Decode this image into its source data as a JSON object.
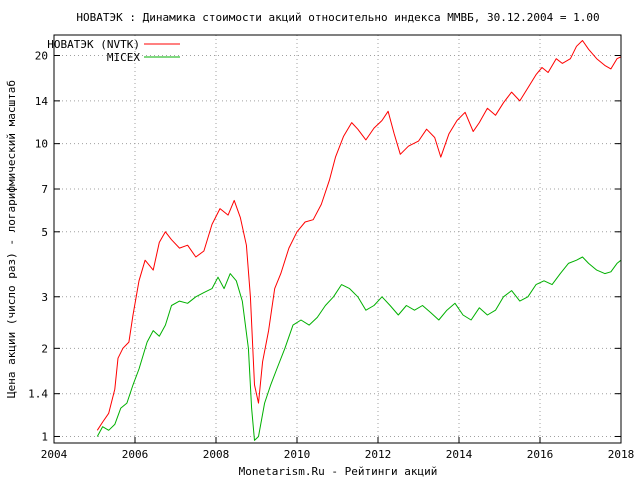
{
  "chart_data": {
    "type": "line",
    "title": "НОВАТЭК : Динамика стоимости акций относительно индекса ММВБ, 30.12.2004 = 1.00",
    "xlabel": "Monetarism.Ru - Рейтинги акций",
    "ylabel": "Цена акции (число раз) - логарифмический масштаб",
    "x_scale": "linear",
    "y_scale": "log",
    "xlim": [
      2004,
      2018
    ],
    "ylim": [
      0.95,
      23.5
    ],
    "x_ticks": [
      "2004",
      "2006",
      "2008",
      "2010",
      "2012",
      "2014",
      "2016",
      "2018"
    ],
    "y_ticks": [
      "1",
      "1.4",
      "2",
      "3",
      "5",
      "7",
      "10",
      "14",
      "20"
    ],
    "grid": true,
    "legend_position": "top-left",
    "series": [
      {
        "name": "НОВАТЭК (NVTK)",
        "color": "#ff0000",
        "points": [
          [
            2005.07,
            1.05
          ],
          [
            2005.2,
            1.12
          ],
          [
            2005.35,
            1.2
          ],
          [
            2005.5,
            1.45
          ],
          [
            2005.58,
            1.85
          ],
          [
            2005.7,
            2.0
          ],
          [
            2005.85,
            2.1
          ],
          [
            2005.95,
            2.6
          ],
          [
            2006.1,
            3.4
          ],
          [
            2006.25,
            4.0
          ],
          [
            2006.45,
            3.7
          ],
          [
            2006.6,
            4.6
          ],
          [
            2006.75,
            5.0
          ],
          [
            2006.9,
            4.7
          ],
          [
            2007.1,
            4.4
          ],
          [
            2007.3,
            4.5
          ],
          [
            2007.5,
            4.1
          ],
          [
            2007.7,
            4.3
          ],
          [
            2007.9,
            5.3
          ],
          [
            2008.1,
            6.0
          ],
          [
            2008.3,
            5.7
          ],
          [
            2008.45,
            6.4
          ],
          [
            2008.6,
            5.6
          ],
          [
            2008.75,
            4.5
          ],
          [
            2008.85,
            3.0
          ],
          [
            2008.95,
            1.5
          ],
          [
            2009.05,
            1.3
          ],
          [
            2009.15,
            1.8
          ],
          [
            2009.3,
            2.3
          ],
          [
            2009.45,
            3.2
          ],
          [
            2009.6,
            3.6
          ],
          [
            2009.8,
            4.4
          ],
          [
            2010.0,
            5.0
          ],
          [
            2010.2,
            5.4
          ],
          [
            2010.4,
            5.5
          ],
          [
            2010.6,
            6.2
          ],
          [
            2010.8,
            7.5
          ],
          [
            2010.95,
            9.0
          ],
          [
            2011.15,
            10.6
          ],
          [
            2011.35,
            11.8
          ],
          [
            2011.5,
            11.2
          ],
          [
            2011.7,
            10.3
          ],
          [
            2011.9,
            11.3
          ],
          [
            2012.1,
            12.0
          ],
          [
            2012.25,
            12.9
          ],
          [
            2012.4,
            10.8
          ],
          [
            2012.55,
            9.2
          ],
          [
            2012.75,
            9.8
          ],
          [
            2013.0,
            10.2
          ],
          [
            2013.2,
            11.2
          ],
          [
            2013.4,
            10.5
          ],
          [
            2013.55,
            9.0
          ],
          [
            2013.75,
            10.8
          ],
          [
            2013.95,
            12.0
          ],
          [
            2014.15,
            12.8
          ],
          [
            2014.35,
            11.0
          ],
          [
            2014.5,
            11.8
          ],
          [
            2014.7,
            13.2
          ],
          [
            2014.9,
            12.5
          ],
          [
            2015.1,
            13.8
          ],
          [
            2015.3,
            15.0
          ],
          [
            2015.5,
            14.0
          ],
          [
            2015.7,
            15.5
          ],
          [
            2015.9,
            17.2
          ],
          [
            2016.05,
            18.2
          ],
          [
            2016.2,
            17.5
          ],
          [
            2016.4,
            19.5
          ],
          [
            2016.55,
            18.8
          ],
          [
            2016.75,
            19.5
          ],
          [
            2016.9,
            21.5
          ],
          [
            2017.05,
            22.5
          ],
          [
            2017.2,
            21.0
          ],
          [
            2017.4,
            19.5
          ],
          [
            2017.6,
            18.5
          ],
          [
            2017.75,
            18.0
          ],
          [
            2017.9,
            19.5
          ],
          [
            2018.0,
            19.8
          ]
        ]
      },
      {
        "name": "MICEX",
        "color": "#00b000",
        "points": [
          [
            2005.07,
            1.0
          ],
          [
            2005.2,
            1.08
          ],
          [
            2005.35,
            1.05
          ],
          [
            2005.5,
            1.1
          ],
          [
            2005.65,
            1.25
          ],
          [
            2005.8,
            1.3
          ],
          [
            2005.95,
            1.5
          ],
          [
            2006.1,
            1.7
          ],
          [
            2006.3,
            2.1
          ],
          [
            2006.45,
            2.3
          ],
          [
            2006.6,
            2.2
          ],
          [
            2006.75,
            2.4
          ],
          [
            2006.9,
            2.8
          ],
          [
            2007.1,
            2.9
          ],
          [
            2007.3,
            2.85
          ],
          [
            2007.5,
            3.0
          ],
          [
            2007.7,
            3.1
          ],
          [
            2007.9,
            3.2
          ],
          [
            2008.05,
            3.5
          ],
          [
            2008.2,
            3.2
          ],
          [
            2008.35,
            3.6
          ],
          [
            2008.5,
            3.4
          ],
          [
            2008.65,
            2.9
          ],
          [
            2008.8,
            2.0
          ],
          [
            2008.88,
            1.25
          ],
          [
            2008.95,
            0.97
          ],
          [
            2009.05,
            1.0
          ],
          [
            2009.2,
            1.3
          ],
          [
            2009.35,
            1.5
          ],
          [
            2009.5,
            1.7
          ],
          [
            2009.7,
            2.0
          ],
          [
            2009.9,
            2.4
          ],
          [
            2010.1,
            2.5
          ],
          [
            2010.3,
            2.4
          ],
          [
            2010.5,
            2.55
          ],
          [
            2010.7,
            2.8
          ],
          [
            2010.9,
            3.0
          ],
          [
            2011.1,
            3.3
          ],
          [
            2011.3,
            3.2
          ],
          [
            2011.5,
            3.0
          ],
          [
            2011.7,
            2.7
          ],
          [
            2011.9,
            2.8
          ],
          [
            2012.1,
            3.0
          ],
          [
            2012.3,
            2.8
          ],
          [
            2012.5,
            2.6
          ],
          [
            2012.7,
            2.8
          ],
          [
            2012.9,
            2.7
          ],
          [
            2013.1,
            2.8
          ],
          [
            2013.3,
            2.65
          ],
          [
            2013.5,
            2.5
          ],
          [
            2013.7,
            2.7
          ],
          [
            2013.9,
            2.85
          ],
          [
            2014.1,
            2.6
          ],
          [
            2014.3,
            2.5
          ],
          [
            2014.5,
            2.75
          ],
          [
            2014.7,
            2.6
          ],
          [
            2014.9,
            2.7
          ],
          [
            2015.1,
            3.0
          ],
          [
            2015.3,
            3.15
          ],
          [
            2015.5,
            2.9
          ],
          [
            2015.7,
            3.0
          ],
          [
            2015.9,
            3.3
          ],
          [
            2016.1,
            3.4
          ],
          [
            2016.3,
            3.3
          ],
          [
            2016.5,
            3.6
          ],
          [
            2016.7,
            3.9
          ],
          [
            2016.9,
            4.0
          ],
          [
            2017.05,
            4.1
          ],
          [
            2017.2,
            3.9
          ],
          [
            2017.4,
            3.7
          ],
          [
            2017.6,
            3.6
          ],
          [
            2017.75,
            3.65
          ],
          [
            2017.9,
            3.9
          ],
          [
            2018.0,
            4.0
          ]
        ]
      }
    ]
  }
}
